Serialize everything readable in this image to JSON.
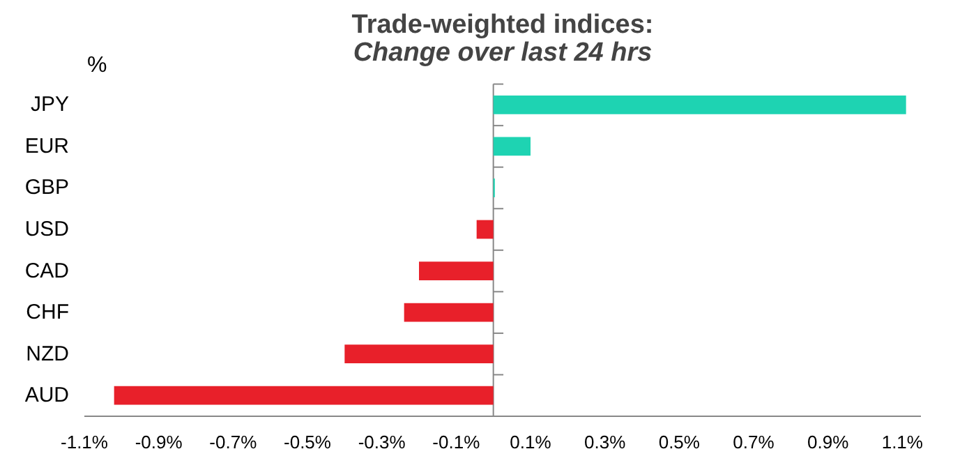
{
  "chart_data": {
    "type": "bar",
    "orientation": "horizontal",
    "title": "Trade-weighted indices:",
    "subtitle": "Change over last 24 hrs",
    "annotations": [
      "%"
    ],
    "categories": [
      "JPY",
      "EUR",
      "GBP",
      "USD",
      "CAD",
      "CHF",
      "NZD",
      "AUD"
    ],
    "values": [
      1.11,
      0.1,
      0.004,
      -0.045,
      -0.2,
      -0.24,
      -0.4,
      -1.02
    ],
    "colors": [
      "#1ed3b2",
      "#1ed3b2",
      "#1ed3b2",
      "#e8202a",
      "#e8202a",
      "#e8202a",
      "#e8202a",
      "#e8202a"
    ],
    "xlim": [
      -1.1,
      1.15
    ],
    "xticks": [
      {
        "value": -1.1,
        "label": "-1.1%"
      },
      {
        "value": -0.9,
        "label": "-0.9%"
      },
      {
        "value": -0.7,
        "label": "-0.7%"
      },
      {
        "value": -0.5,
        "label": "-0.5%"
      },
      {
        "value": -0.3,
        "label": "-0.3%"
      },
      {
        "value": -0.1,
        "label": "-0.1%"
      },
      {
        "value": 0.1,
        "label": "0.1%"
      },
      {
        "value": 0.3,
        "label": "0.3%"
      },
      {
        "value": 0.5,
        "label": "0.5%"
      },
      {
        "value": 0.7,
        "label": "0.7%"
      },
      {
        "value": 0.9,
        "label": "0.9%"
      },
      {
        "value": 1.1,
        "label": "1.1%"
      }
    ],
    "grid": false
  }
}
